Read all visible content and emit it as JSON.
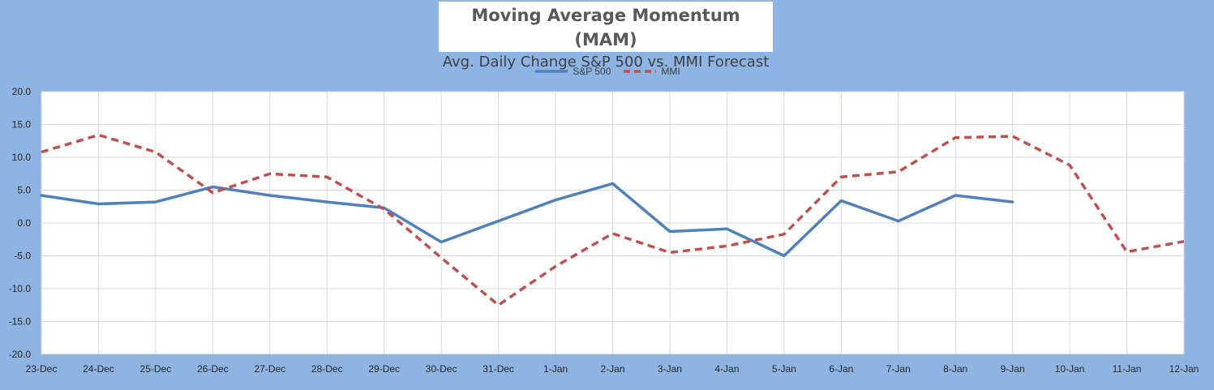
{
  "colors": {
    "background": "#8db4e2",
    "plot_bg": "#ffffff",
    "grid": "#d9d9d9",
    "sp500": "#4f81bd",
    "mmi": "#c0504d"
  },
  "chart_data": {
    "type": "line",
    "title": "Moving Average Momentum (MAM)",
    "subtitle": "Avg. Daily Change S&P 500 vs. MMI Forecast",
    "xlabel": "",
    "ylabel": "",
    "legend_position": "top",
    "grid": true,
    "ylim": [
      -20,
      20
    ],
    "yticks": [
      "20.0",
      "15.0",
      "10.0",
      "5.0",
      "0.0",
      "-5.0",
      "-10.0",
      "-15.0",
      "-20.0"
    ],
    "categories": [
      "23-Dec",
      "24-Dec",
      "25-Dec",
      "26-Dec",
      "27-Dec",
      "28-Dec",
      "29-Dec",
      "30-Dec",
      "31-Dec",
      "1-Jan",
      "2-Jan",
      "3-Jan",
      "4-Jan",
      "5-Jan",
      "6-Jan",
      "7-Jan",
      "8-Jan",
      "9-Jan",
      "10-Jan",
      "11-Jan",
      "12-Jan"
    ],
    "series": [
      {
        "name": "S&P 500",
        "style": "solid",
        "values": [
          4.2,
          2.9,
          3.2,
          5.5,
          4.2,
          3.2,
          2.3,
          -2.9,
          0.3,
          3.5,
          6.0,
          -1.3,
          -0.9,
          -5.0,
          3.4,
          0.3,
          4.2,
          3.2,
          null,
          null,
          null
        ]
      },
      {
        "name": "MMI",
        "style": "dashed",
        "values": [
          10.8,
          13.4,
          10.8,
          4.6,
          7.5,
          7.0,
          2.1,
          -5.3,
          -12.5,
          -6.6,
          -1.6,
          -4.5,
          -3.5,
          -1.7,
          7.0,
          7.8,
          13.0,
          13.2,
          8.8,
          -4.4,
          -2.8
        ]
      }
    ]
  }
}
